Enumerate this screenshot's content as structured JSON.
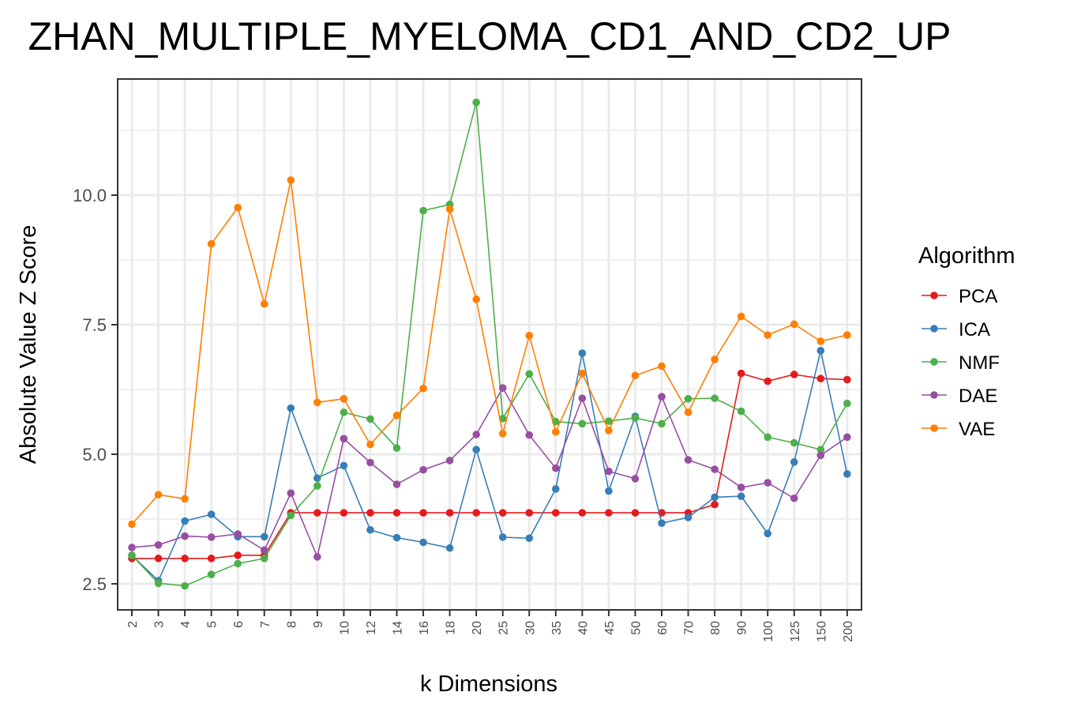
{
  "chart_data": {
    "type": "line",
    "title": "ZHAN_MULTIPLE_MYELOMA_CD1_AND_CD2_UP",
    "xlabel": "k Dimensions",
    "ylabel": "Absolute Value Z Score",
    "categories": [
      "2",
      "3",
      "4",
      "5",
      "6",
      "7",
      "8",
      "9",
      "10",
      "12",
      "14",
      "16",
      "18",
      "20",
      "25",
      "30",
      "35",
      "40",
      "45",
      "50",
      "60",
      "70",
      "80",
      "90",
      "100",
      "125",
      "150",
      "200"
    ],
    "yticks": [
      "2.5",
      "5.0",
      "7.5",
      "10.0"
    ],
    "ylim": [
      2.0,
      12.5
    ],
    "grid": true,
    "legend_title": "Algorithm",
    "legend_position": "right",
    "series": [
      {
        "name": "PCA",
        "color": "#e41a1c",
        "values": [
          2.99,
          2.99,
          2.99,
          2.99,
          3.05,
          3.05,
          3.87,
          3.87,
          3.87,
          3.87,
          3.87,
          3.87,
          3.87,
          3.87,
          3.87,
          3.87,
          3.87,
          3.87,
          3.87,
          3.87,
          3.87,
          3.87,
          4.03,
          6.56,
          6.41,
          6.54,
          6.46,
          6.44
        ]
      },
      {
        "name": "ICA",
        "color": "#377eb8",
        "values": [
          3.05,
          2.56,
          3.71,
          3.84,
          3.41,
          3.41,
          5.89,
          4.54,
          4.78,
          3.54,
          3.39,
          3.3,
          3.19,
          5.09,
          3.4,
          3.38,
          4.33,
          6.95,
          4.29,
          5.73,
          3.67,
          3.78,
          4.17,
          4.19,
          3.47,
          4.85,
          7.0,
          4.62
        ]
      },
      {
        "name": "NMF",
        "color": "#4daf4a",
        "values": [
          3.05,
          2.51,
          2.46,
          2.68,
          2.89,
          2.99,
          3.82,
          4.39,
          5.81,
          5.68,
          5.12,
          9.7,
          9.82,
          11.79,
          5.69,
          6.55,
          5.63,
          5.59,
          5.64,
          5.7,
          5.59,
          6.07,
          6.08,
          5.83,
          5.33,
          5.22,
          5.09,
          5.98
        ]
      },
      {
        "name": "DAE",
        "color": "#984ea3",
        "values": [
          3.2,
          3.25,
          3.42,
          3.4,
          3.46,
          3.15,
          4.25,
          3.02,
          5.3,
          4.84,
          4.42,
          4.7,
          4.88,
          5.38,
          6.28,
          5.37,
          4.73,
          6.08,
          4.67,
          4.53,
          6.11,
          4.89,
          4.71,
          4.36,
          4.45,
          4.15,
          4.98,
          5.33
        ]
      },
      {
        "name": "VAE",
        "color": "#ff7f00",
        "values": [
          3.65,
          4.22,
          4.14,
          9.06,
          9.76,
          7.9,
          10.29,
          6.0,
          6.07,
          5.19,
          5.75,
          6.27,
          9.73,
          7.99,
          5.4,
          7.29,
          5.43,
          6.56,
          5.46,
          6.52,
          6.7,
          5.81,
          6.83,
          7.66,
          7.3,
          7.51,
          7.18,
          7.3
        ]
      }
    ]
  }
}
